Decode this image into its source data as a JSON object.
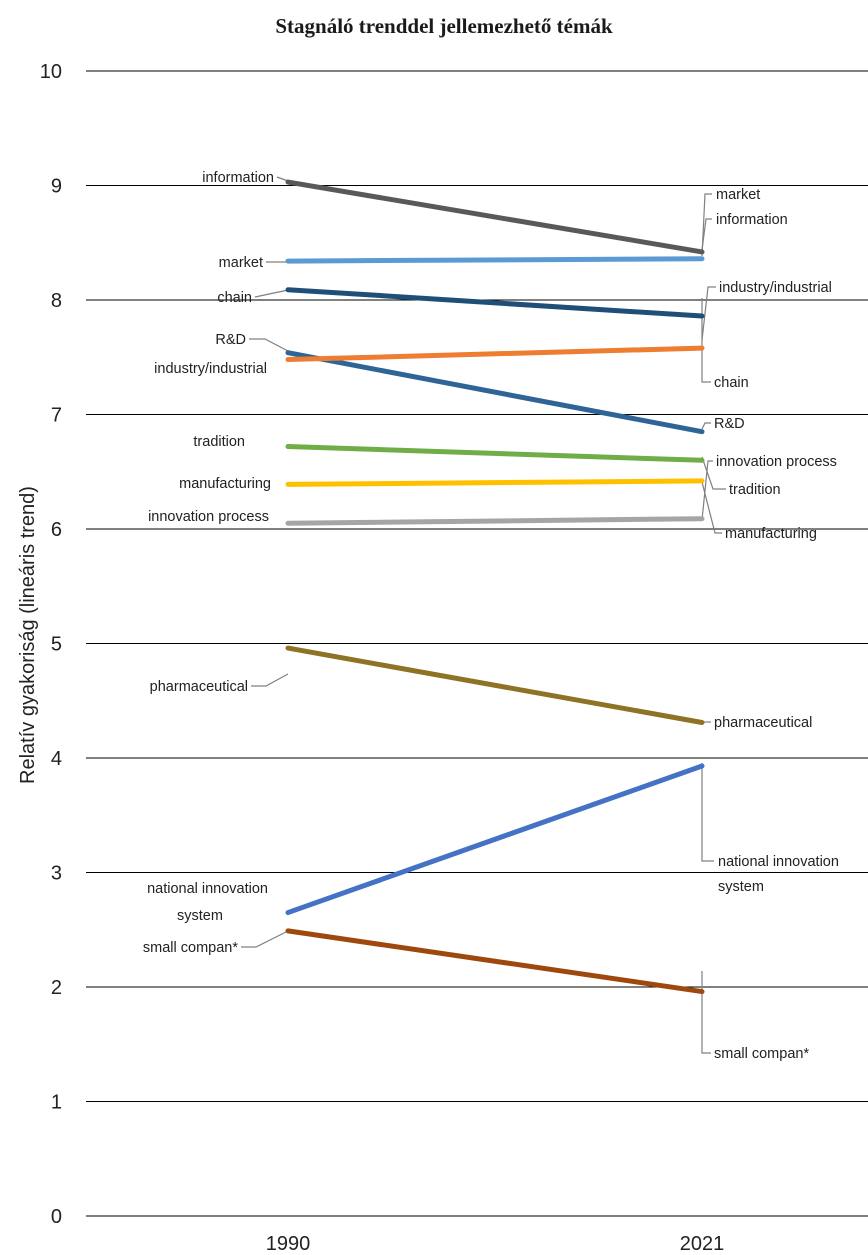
{
  "chart_data": {
    "type": "line",
    "title": "Stagnáló trenddel jellemezhető témák",
    "ylabel": "Relatív gyakoriság (lineáris trend)",
    "xlabel": "",
    "x": [
      "1990",
      "2021"
    ],
    "ylim": [
      0,
      10
    ],
    "yticks": [
      "0",
      "1",
      "2",
      "3",
      "4",
      "5",
      "6",
      "7",
      "8",
      "9",
      "10"
    ],
    "grid": true,
    "legend": "none",
    "series": [
      {
        "name": "information",
        "values": [
          9.03,
          8.42
        ],
        "color": "#595959"
      },
      {
        "name": "market",
        "values": [
          8.34,
          8.36
        ],
        "color": "#5b9bd5"
      },
      {
        "name": "chain",
        "values": [
          8.09,
          7.86
        ],
        "color": "#1f4e79"
      },
      {
        "name": "R&D",
        "values": [
          7.54,
          6.85
        ],
        "color": "#2e6496"
      },
      {
        "name": "industry/industrial",
        "values": [
          7.48,
          7.58
        ],
        "color": "#ed7d31"
      },
      {
        "name": "tradition",
        "values": [
          6.72,
          6.6
        ],
        "color": "#70ad47"
      },
      {
        "name": "manufacturing",
        "values": [
          6.39,
          6.42
        ],
        "color": "#ffc000"
      },
      {
        "name": "innovation process",
        "values": [
          6.05,
          6.09
        ],
        "color": "#a5a5a5"
      },
      {
        "name": "pharmaceutical",
        "values": [
          4.96,
          4.31
        ],
        "color": "#8e7325"
      },
      {
        "name": "national innovation system",
        "values": [
          2.65,
          3.93
        ],
        "color": "#4472c4"
      },
      {
        "name": "small compan*",
        "values": [
          2.49,
          1.96
        ],
        "color": "#9e480e"
      }
    ]
  }
}
